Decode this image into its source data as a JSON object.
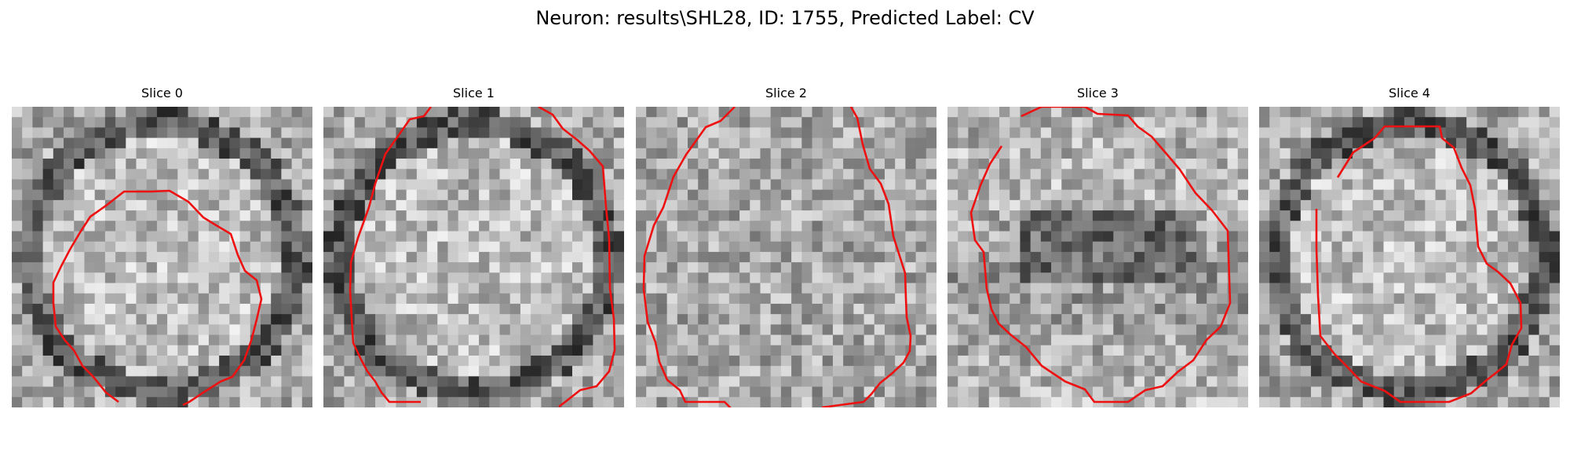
{
  "figure": {
    "title": "Neuron: results\\SHL28, ID: 1755, Predicted Label: CV"
  },
  "colors": {
    "contour": "#ee1111",
    "background": "#ffffff"
  },
  "panels": [
    {
      "title": "Slice 0",
      "seed": 11,
      "variant": "ring"
    },
    {
      "title": "Slice 1",
      "seed": 23,
      "variant": "ring"
    },
    {
      "title": "Slice 2",
      "seed": 37,
      "variant": "open"
    },
    {
      "title": "Slice 3",
      "seed": 53,
      "variant": "split"
    },
    {
      "title": "Slice 4",
      "seed": 71,
      "variant": "inner"
    }
  ]
}
